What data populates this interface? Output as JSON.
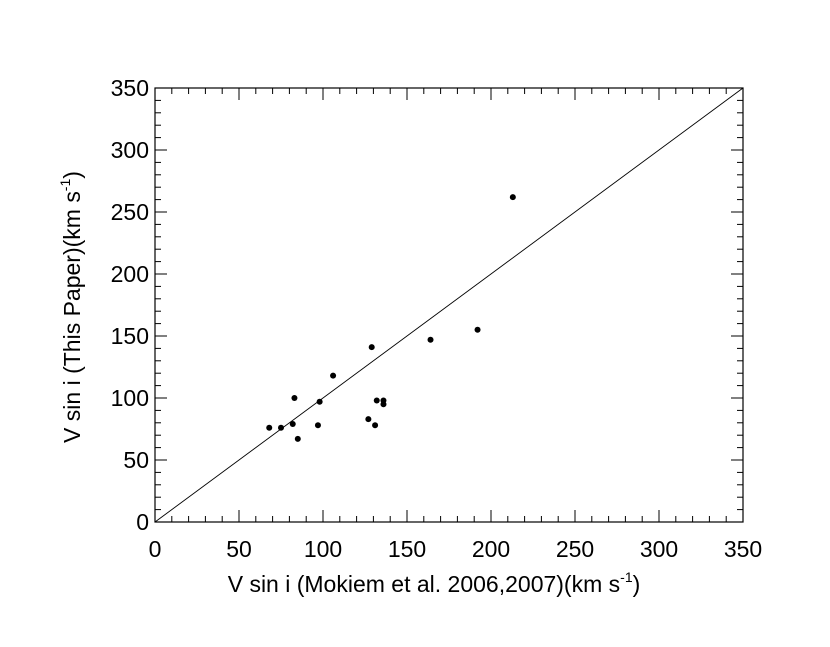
{
  "chart_data": {
    "type": "scatter",
    "xlabel": "V sin i (Mokiem et al. 2006,2007)(km s",
    "xlabel_sup": "-1",
    "xlabel_end": ")",
    "ylabel": "V sin i (This Paper)(km s",
    "ylabel_sup": "-1",
    "ylabel_end": ")",
    "xlim": [
      0,
      350
    ],
    "ylim": [
      0,
      350
    ],
    "xticks": [
      0,
      50,
      100,
      150,
      200,
      250,
      300,
      350
    ],
    "yticks": [
      0,
      50,
      100,
      150,
      200,
      250,
      300,
      350
    ],
    "x_minor_step": 10,
    "y_minor_step": 10,
    "grid": false,
    "reference_line": {
      "x": [
        0,
        350
      ],
      "y": [
        0,
        350
      ],
      "label": ""
    },
    "series": [
      {
        "points": [
          {
            "x": 68,
            "y": 76
          },
          {
            "x": 75,
            "y": 76
          },
          {
            "x": 82,
            "y": 79
          },
          {
            "x": 83,
            "y": 100
          },
          {
            "x": 85,
            "y": 67
          },
          {
            "x": 97,
            "y": 78
          },
          {
            "x": 98,
            "y": 97
          },
          {
            "x": 106,
            "y": 118
          },
          {
            "x": 127,
            "y": 83
          },
          {
            "x": 129,
            "y": 141
          },
          {
            "x": 131,
            "y": 78
          },
          {
            "x": 132,
            "y": 98
          },
          {
            "x": 136,
            "y": 95
          },
          {
            "x": 136,
            "y": 98
          },
          {
            "x": 164,
            "y": 147
          },
          {
            "x": 192,
            "y": 155
          },
          {
            "x": 213,
            "y": 262
          }
        ]
      }
    ]
  }
}
